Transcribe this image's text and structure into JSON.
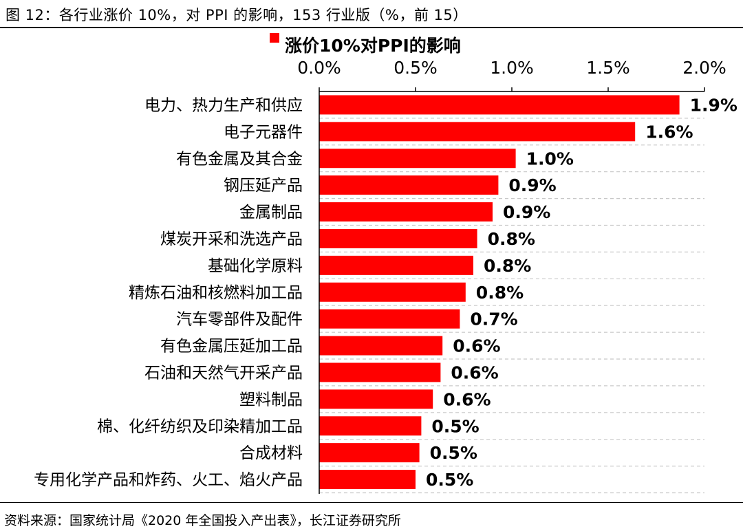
{
  "figure_title": "图 12：各行业涨价 10%，对 PPI 的影响，153 行业版（%，前 15）",
  "source_note": "资料来源：国家统计局《2020 年全国投入产出表》，长江证券研究所",
  "bar_color": "#ff0000",
  "grid_color": "#c8c8c8",
  "chart_data": {
    "type": "bar",
    "orientation": "horizontal",
    "legend_position": "top-left",
    "x_axis_position": "top",
    "grid": true,
    "xlim": [
      0,
      2.0
    ],
    "xticks": [
      0.0,
      0.5,
      1.0,
      1.5,
      2.0
    ],
    "xtick_labels": [
      "0.0%",
      "0.5%",
      "1.0%",
      "1.5%",
      "2.0%"
    ],
    "series": [
      {
        "name": "涨价10%对PPI的影响",
        "values": [
          1.87,
          1.64,
          1.02,
          0.93,
          0.9,
          0.82,
          0.8,
          0.76,
          0.73,
          0.64,
          0.63,
          0.59,
          0.53,
          0.52,
          0.5
        ],
        "labels": [
          "1.9%",
          "1.6%",
          "1.0%",
          "0.9%",
          "0.9%",
          "0.8%",
          "0.8%",
          "0.8%",
          "0.7%",
          "0.6%",
          "0.6%",
          "0.6%",
          "0.5%",
          "0.5%",
          "0.5%"
        ]
      }
    ],
    "categories": [
      "电力、热力生产和供应",
      "电子元器件",
      "有色金属及其合金",
      "钢压延产品",
      "金属制品",
      "煤炭开采和洗选产品",
      "基础化学原料",
      "精炼石油和核燃料加工品",
      "汽车零部件及配件",
      "有色金属压延加工品",
      "石油和天然气开采产品",
      "塑料制品",
      "棉、化纤纺织及印染精加工品",
      "合成材料",
      "专用化学产品和炸药、火工、焰火产品"
    ]
  }
}
